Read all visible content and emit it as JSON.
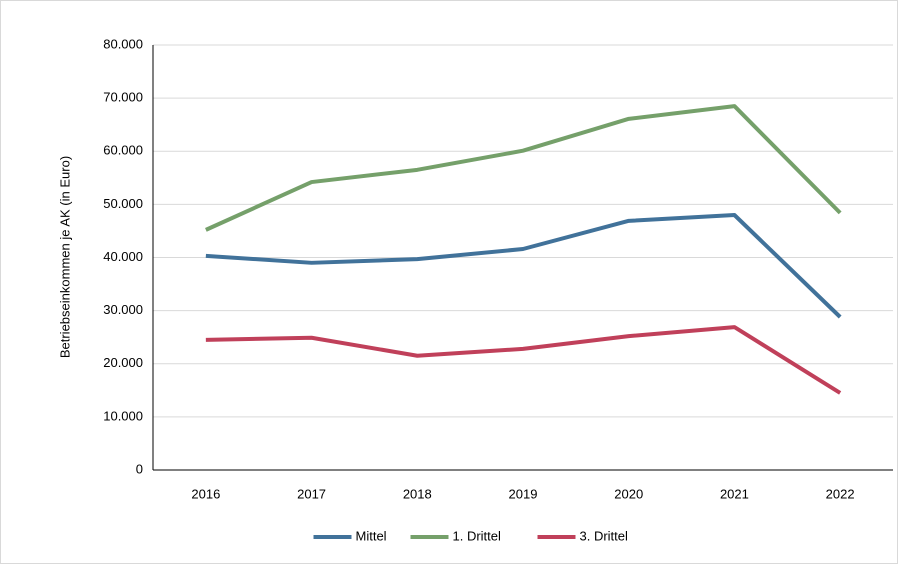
{
  "chart_data": {
    "type": "line",
    "y_label": "Betriebseinkommen je AK (in Euro)",
    "categories": [
      "2016",
      "2017",
      "2018",
      "2019",
      "2020",
      "2021",
      "2022"
    ],
    "series": [
      {
        "name": "Mittel",
        "color": "#41729a",
        "values": [
          40300,
          39000,
          39700,
          41600,
          46900,
          48000,
          28800
        ]
      },
      {
        "name": "1. Drittel",
        "color": "#75a06a",
        "values": [
          45200,
          54200,
          56500,
          60100,
          66100,
          68500,
          48400
        ]
      },
      {
        "name": "3. Drittel",
        "color": "#c0405a",
        "values": [
          24500,
          24900,
          21500,
          22800,
          25200,
          26900,
          14500
        ]
      }
    ],
    "ylim": [
      0,
      80000
    ],
    "yticks": [
      0,
      {
        "value": 10000,
        "label": "10.000"
      },
      {
        "value": 20000,
        "label": "20.000"
      },
      {
        "value": 30000,
        "label": "30.000"
      },
      {
        "value": 40000,
        "label": "40.000"
      },
      {
        "value": 50000,
        "label": "50.000"
      },
      {
        "value": 60000,
        "label": "60.000"
      },
      {
        "value": 70000,
        "label": "70.000"
      },
      {
        "value": 80000,
        "label": "80.000"
      }
    ],
    "grid": true,
    "legend": "bottom"
  }
}
